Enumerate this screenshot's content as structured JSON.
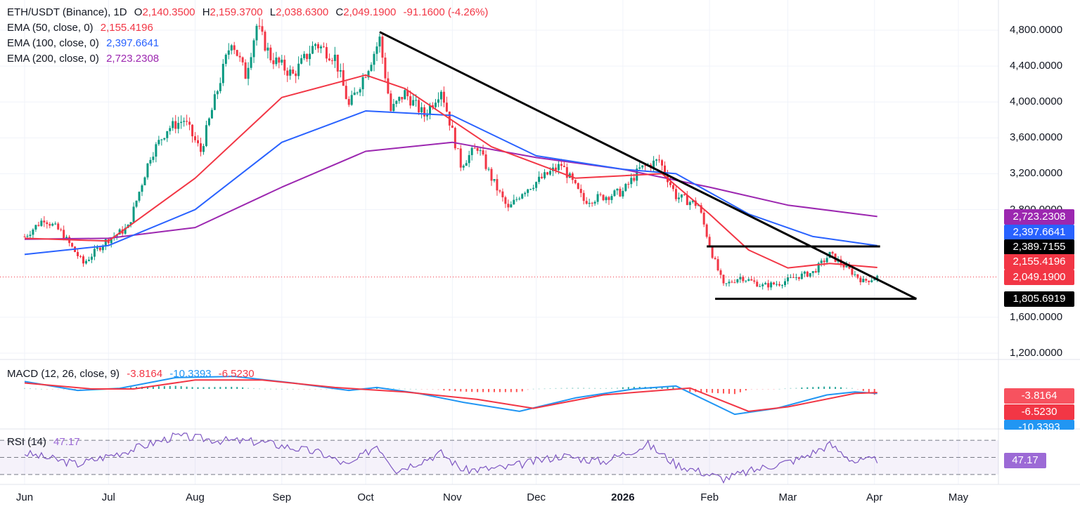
{
  "header": {
    "symbol": "ETH/USDT (Binance), 1D",
    "open_label": "O",
    "open": "2,140.3500",
    "high_label": "H",
    "high": "2,159.3700",
    "low_label": "L",
    "low": "2,038.6300",
    "close_label": "C",
    "close": "2,049.1900",
    "change": "-91.1600 (-4.26%)"
  },
  "indicators": {
    "ema50": {
      "label": "EMA (50, close, 0)",
      "value": "2,155.4196",
      "color": "#f23645"
    },
    "ema100": {
      "label": "EMA (100, close, 0)",
      "value": "2,397.6641",
      "color": "#2962ff"
    },
    "ema200": {
      "label": "EMA (200, close, 0)",
      "value": "2,723.2308",
      "color": "#9c27b0"
    },
    "macd": {
      "label": "MACD (12, 26, close, 9)",
      "hist": "-3.8164",
      "macd": "-10.3393",
      "signal": "-6.5230"
    },
    "rsi": {
      "label": "RSI (14)",
      "value": "47.17"
    }
  },
  "price_tags": [
    {
      "text": "2,723.2308",
      "color": "#9c27b0"
    },
    {
      "text": "2,397.6641",
      "color": "#2962ff"
    },
    {
      "text": "2,389.7155",
      "color": "#000000"
    },
    {
      "text": "2,155.4196",
      "color": "#f23645"
    },
    {
      "text": "2,049.1900",
      "color": "#f23645"
    },
    {
      "text": "1,805.6919",
      "color": "#000000"
    }
  ],
  "macd_tags": [
    {
      "text": "-3.8164",
      "color": "#f7525f"
    },
    {
      "text": "-6.5230",
      "color": "#f23645"
    },
    {
      "text": "-10.3393",
      "color": "#2196f3"
    }
  ],
  "rsi_tag": {
    "text": "47.17",
    "color": "#9c6ad6"
  },
  "chart_data": {
    "type": "candlestick",
    "y_axis_ticks": [
      "4,800.0000",
      "4,400.0000",
      "4,000.0000",
      "3,600.0000",
      "3,200.0000",
      "2,800.0000",
      "1,600.0000",
      "1,200.0000"
    ],
    "y_axis_tick_values": [
      4800,
      4400,
      4000,
      3600,
      3200,
      2800,
      1600,
      1200
    ],
    "x_axis_labels": [
      "Jun",
      "Jul",
      "Aug",
      "Sep",
      "Oct",
      "Nov",
      "Dec",
      "2026",
      "Feb",
      "Mar",
      "Apr",
      "May"
    ],
    "ylim": [
      1050,
      4950
    ],
    "price_path": [
      [
        "2025-06-01",
        2500
      ],
      [
        "2025-06-08",
        2700
      ],
      [
        "2025-06-14",
        2550
      ],
      [
        "2025-06-22",
        2200
      ],
      [
        "2025-06-30",
        2450
      ],
      [
        "2025-07-08",
        2600
      ],
      [
        "2025-07-16",
        3400
      ],
      [
        "2025-07-22",
        3700
      ],
      [
        "2025-07-28",
        3800
      ],
      [
        "2025-08-03",
        3450
      ],
      [
        "2025-08-10",
        4250
      ],
      [
        "2025-08-14",
        4700
      ],
      [
        "2025-08-19",
        4300
      ],
      [
        "2025-08-23",
        4850
      ],
      [
        "2025-08-28",
        4500
      ],
      [
        "2025-09-05",
        4300
      ],
      [
        "2025-09-13",
        4650
      ],
      [
        "2025-09-20",
        4500
      ],
      [
        "2025-09-25",
        3950
      ],
      [
        "2025-10-02",
        4400
      ],
      [
        "2025-10-06",
        4700
      ],
      [
        "2025-10-10",
        3900
      ],
      [
        "2025-10-15",
        4100
      ],
      [
        "2025-10-22",
        3850
      ],
      [
        "2025-10-28",
        4150
      ],
      [
        "2025-11-04",
        3300
      ],
      [
        "2025-11-10",
        3500
      ],
      [
        "2025-11-15",
        3150
      ],
      [
        "2025-11-21",
        2800
      ],
      [
        "2025-11-26",
        3000
      ],
      [
        "2025-12-03",
        3150
      ],
      [
        "2025-12-10",
        3300
      ],
      [
        "2025-12-18",
        2900
      ],
      [
        "2025-12-26",
        2950
      ],
      [
        "2026-01-01",
        3000
      ],
      [
        "2026-01-07",
        3250
      ],
      [
        "2026-01-14",
        3350
      ],
      [
        "2026-01-20",
        2950
      ],
      [
        "2026-01-28",
        2850
      ],
      [
        "2026-02-02",
        2300
      ],
      [
        "2026-02-06",
        1950
      ],
      [
        "2026-02-12",
        2050
      ],
      [
        "2026-02-20",
        1950
      ],
      [
        "2026-02-26",
        1980
      ],
      [
        "2026-03-04",
        2050
      ],
      [
        "2026-03-10",
        2100
      ],
      [
        "2026-03-16",
        2300
      ],
      [
        "2026-03-22",
        2150
      ],
      [
        "2026-03-28",
        2000
      ],
      [
        "2026-04-02",
        2049
      ]
    ],
    "ema50_path": [
      [
        "2025-06-01",
        2480
      ],
      [
        "2025-07-01",
        2450
      ],
      [
        "2025-08-01",
        3150
      ],
      [
        "2025-09-01",
        4050
      ],
      [
        "2025-10-01",
        4300
      ],
      [
        "2025-10-15",
        4150
      ],
      [
        "2025-11-15",
        3500
      ],
      [
        "2025-12-15",
        3150
      ],
      [
        "2026-01-15",
        3200
      ],
      [
        "2026-02-01",
        2750
      ],
      [
        "2026-02-15",
        2350
      ],
      [
        "2026-03-01",
        2150
      ],
      [
        "2026-03-16",
        2200
      ],
      [
        "2026-04-02",
        2155
      ]
    ],
    "ema100_path": [
      [
        "2025-06-01",
        2300
      ],
      [
        "2025-07-01",
        2400
      ],
      [
        "2025-08-01",
        2800
      ],
      [
        "2025-09-01",
        3550
      ],
      [
        "2025-10-01",
        3900
      ],
      [
        "2025-11-01",
        3850
      ],
      [
        "2025-12-01",
        3400
      ],
      [
        "2026-01-01",
        3250
      ],
      [
        "2026-01-20",
        3200
      ],
      [
        "2026-02-15",
        2750
      ],
      [
        "2026-03-10",
        2500
      ],
      [
        "2026-04-02",
        2398
      ]
    ],
    "ema200_path": [
      [
        "2025-06-01",
        2470
      ],
      [
        "2025-07-01",
        2480
      ],
      [
        "2025-08-01",
        2600
      ],
      [
        "2025-09-01",
        3050
      ],
      [
        "2025-10-01",
        3450
      ],
      [
        "2025-11-01",
        3550
      ],
      [
        "2025-12-01",
        3380
      ],
      [
        "2026-01-01",
        3250
      ],
      [
        "2026-02-01",
        3050
      ],
      [
        "2026-03-01",
        2850
      ],
      [
        "2026-04-02",
        2723
      ]
    ],
    "trendline": [
      [
        "2025-10-06",
        4780
      ],
      [
        "2026-04-16",
        1805
      ]
    ],
    "horizontal_levels": [
      {
        "from": "2026-01-31",
        "to": "2026-04-03",
        "value": 2389.7155
      },
      {
        "from": "2026-02-03",
        "to": "2026-04-16",
        "value": 1805.6919
      }
    ],
    "last_price": 2049.19,
    "macd": {
      "ylim": [
        -12,
        8
      ],
      "macd_path": [
        [
          "2025-06-01",
          2.5
        ],
        [
          "2025-06-20",
          -0.5
        ],
        [
          "2025-07-05",
          0.2
        ],
        [
          "2025-07-25",
          3.8
        ],
        [
          "2025-08-15",
          4.2
        ],
        [
          "2025-09-05",
          2.0
        ],
        [
          "2025-09-25",
          -0.5
        ],
        [
          "2025-10-05",
          0.5
        ],
        [
          "2025-10-20",
          -1.5
        ],
        [
          "2025-11-05",
          -4.5
        ],
        [
          "2025-11-25",
          -7.5
        ],
        [
          "2025-12-15",
          -3.0
        ],
        [
          "2026-01-05",
          0.0
        ],
        [
          "2026-01-20",
          1.0
        ],
        [
          "2026-02-10",
          -8.5
        ],
        [
          "2026-02-25",
          -6.5
        ],
        [
          "2026-03-15",
          -2.0
        ],
        [
          "2026-03-25",
          -1.0
        ],
        [
          "2026-04-02",
          -10.3393
        ]
      ],
      "signal_path": [
        [
          "2025-06-01",
          2.0
        ],
        [
          "2025-06-25",
          0.0
        ],
        [
          "2025-07-10",
          0.0
        ],
        [
          "2025-08-01",
          3.0
        ],
        [
          "2025-08-25",
          3.0
        ],
        [
          "2025-09-20",
          0.5
        ],
        [
          "2025-10-15",
          -1.0
        ],
        [
          "2025-11-10",
          -3.5
        ],
        [
          "2025-11-30",
          -6.5
        ],
        [
          "2025-12-25",
          -2.0
        ],
        [
          "2026-01-25",
          0.3
        ],
        [
          "2026-02-15",
          -7.5
        ],
        [
          "2026-03-01",
          -6.0
        ],
        [
          "2026-03-25",
          -1.5
        ],
        [
          "2026-04-02",
          -6.523
        ]
      ]
    },
    "rsi": {
      "ylim": [
        20,
        80
      ],
      "upper": 70,
      "mid": 50,
      "lower": 30,
      "path": [
        [
          "2025-06-01",
          55
        ],
        [
          "2025-06-20",
          42
        ],
        [
          "2025-07-10",
          60
        ],
        [
          "2025-07-25",
          75
        ],
        [
          "2025-08-10",
          70
        ],
        [
          "2025-08-25",
          68
        ],
        [
          "2025-09-15",
          55
        ],
        [
          "2025-09-25",
          40
        ],
        [
          "2025-10-05",
          65
        ],
        [
          "2025-10-12",
          35
        ],
        [
          "2025-10-28",
          55
        ],
        [
          "2025-11-05",
          35
        ],
        [
          "2025-11-20",
          38
        ],
        [
          "2025-12-10",
          52
        ],
        [
          "2025-12-25",
          45
        ],
        [
          "2026-01-10",
          65
        ],
        [
          "2026-01-20",
          42
        ],
        [
          "2026-02-01",
          30
        ],
        [
          "2026-02-06",
          25
        ],
        [
          "2026-02-20",
          38
        ],
        [
          "2026-03-05",
          48
        ],
        [
          "2026-03-16",
          65
        ],
        [
          "2026-03-25",
          45
        ],
        [
          "2026-04-02",
          47.17
        ]
      ]
    }
  }
}
